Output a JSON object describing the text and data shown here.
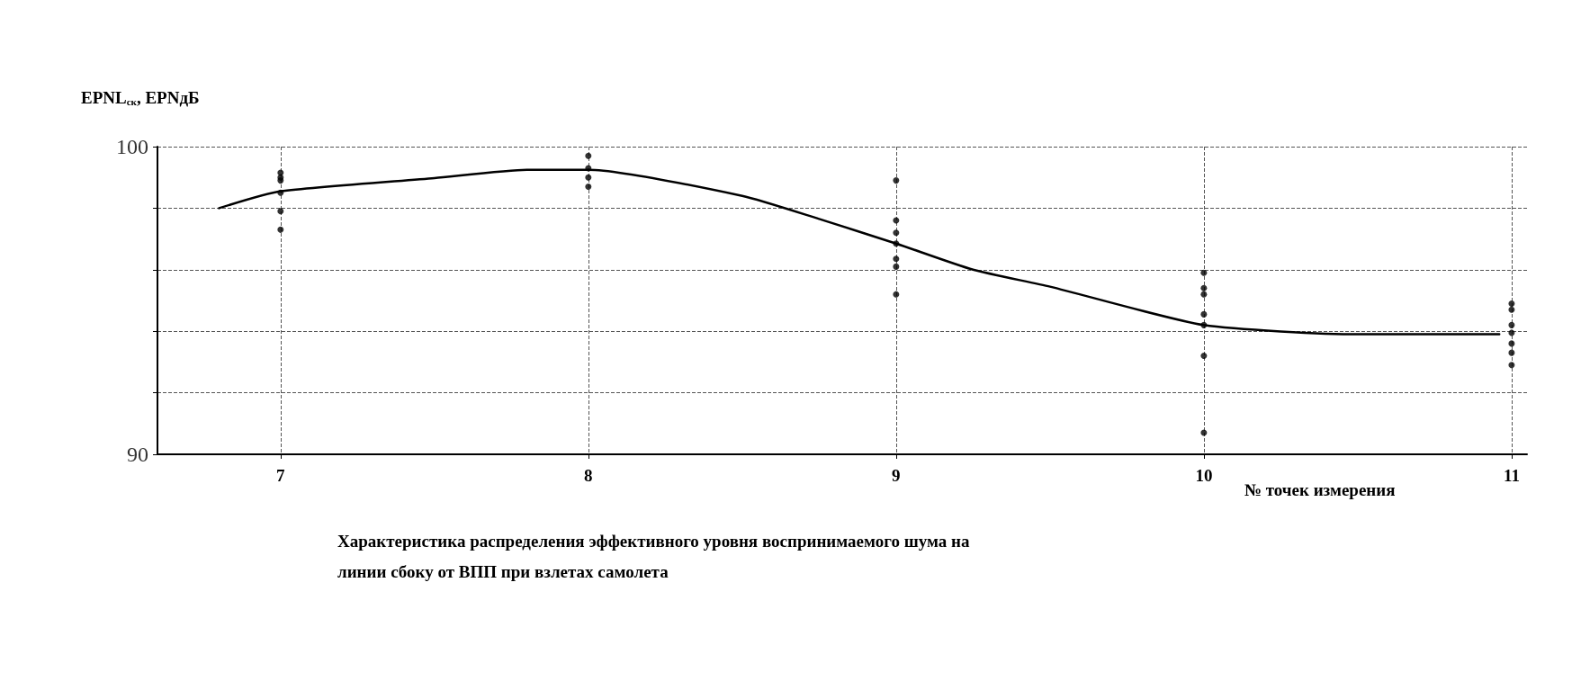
{
  "chart_data": {
    "type": "scatter",
    "title": "Характеристика распределения эффективного уровня воспринимаемого шума на\nлинии сбоку от ВПП при взлетах самолета",
    "xlabel": "№ точек измерения",
    "ylabel": "EPNL$_{ск}$, EPNдБ",
    "xlim": [
      6.6,
      11.05
    ],
    "xticks": [
      7,
      8,
      9,
      10,
      11
    ],
    "ylim": [
      90,
      100
    ],
    "yticks": [
      90,
      {
        "value": 92,
        "label": null
      },
      {
        "value": 94,
        "label": null
      },
      {
        "value": 96,
        "label": null
      },
      {
        "value": 98,
        "label": null
      },
      100
    ],
    "grid": true,
    "series": [
      {
        "color": "#000000",
        "marker": "circle",
        "x": [
          7,
          7,
          7,
          7,
          7,
          7,
          8,
          8,
          8,
          8,
          9,
          9,
          9,
          9,
          9,
          9,
          9,
          10,
          10,
          10,
          10,
          10,
          10,
          10,
          11,
          11,
          11,
          11,
          11,
          11,
          11
        ],
        "values": [
          99.15,
          99.0,
          98.9,
          98.5,
          97.9,
          97.3,
          99.7,
          99.3,
          99.0,
          98.7,
          98.9,
          97.6,
          97.2,
          96.85,
          96.35,
          96.1,
          95.2,
          95.9,
          95.4,
          95.2,
          94.55,
          94.2,
          93.2,
          90.7,
          94.9,
          94.7,
          94.2,
          93.95,
          93.6,
          93.3,
          92.9
        ]
      },
      {
        "type": "line",
        "color": "#000000",
        "marker": "none",
        "line_style": "solid",
        "x": [
          6.8,
          7,
          7.5,
          7.8,
          8,
          8.5,
          8.75,
          9,
          9.25,
          9.5,
          10,
          10.5,
          10.96
        ],
        "values": [
          98.0,
          98.55,
          98.98,
          99.25,
          99.25,
          98.4,
          97.65,
          96.85,
          96.0,
          95.45,
          94.2,
          93.9,
          93.9
        ]
      }
    ]
  }
}
